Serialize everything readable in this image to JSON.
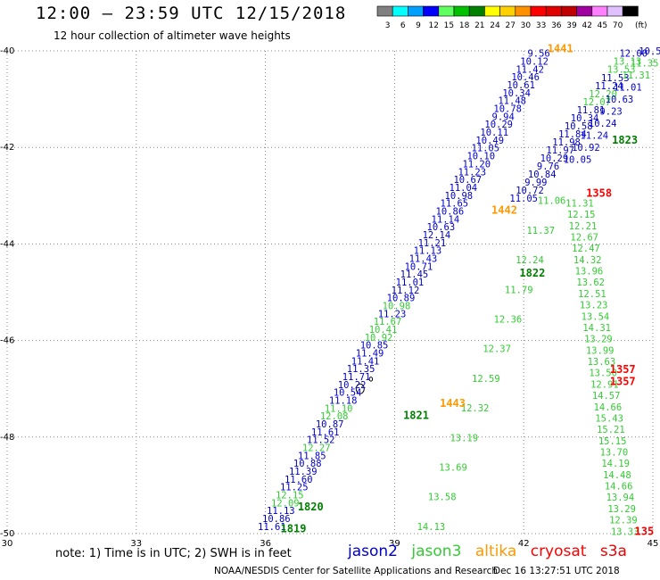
{
  "title": "12:00 – 23:59 UTC 12/15/2018",
  "subtitle": "12 hour collection of altimeter wave heights",
  "legend": {
    "unit": "(ft)",
    "bins": [
      {
        "label": "3",
        "color": "#808080"
      },
      {
        "label": "6",
        "color": "#00ffff"
      },
      {
        "label": "9",
        "color": "#00a0ff"
      },
      {
        "label": "12",
        "color": "#0000ff"
      },
      {
        "label": "15",
        "color": "#60ff60"
      },
      {
        "label": "18",
        "color": "#00c000"
      },
      {
        "label": "21",
        "color": "#008000"
      },
      {
        "label": "24",
        "color": "#ffff00"
      },
      {
        "label": "27",
        "color": "#ffd000"
      },
      {
        "label": "30",
        "color": "#ff9000"
      },
      {
        "label": "33",
        "color": "#ff0000"
      },
      {
        "label": "36",
        "color": "#e00000"
      },
      {
        "label": "39",
        "color": "#c00000"
      },
      {
        "label": "42",
        "color": "#a000a0"
      },
      {
        "label": "45",
        "color": "#ff80ff"
      },
      {
        "label": "70",
        "color": "#e0c0ff"
      },
      {
        "label": "",
        "color": "#000000"
      }
    ]
  },
  "map": {
    "lon_ticks": [
      {
        "label": "30",
        "lon": 30
      },
      {
        "label": "33",
        "lon": 33
      },
      {
        "label": "36",
        "lon": 36
      },
      {
        "label": "39",
        "lon": 39
      },
      {
        "label": "42",
        "lon": 42
      },
      {
        "label": "45",
        "lon": 45
      }
    ],
    "lat_ticks": [
      {
        "label": "-40",
        "lat": -40
      },
      {
        "label": "-42",
        "lat": -42
      },
      {
        "label": "-44",
        "lat": -44
      },
      {
        "label": "-46",
        "lat": -46
      },
      {
        "label": "-48",
        "lat": -48
      },
      {
        "label": "-50",
        "lat": -50
      }
    ],
    "lon_range": [
      30,
      45
    ],
    "lat_range": [
      -50,
      -40
    ],
    "grid": "dotted",
    "sat_colors": {
      "jason2": "#0000cc",
      "jason3": "#33cc33",
      "altika": "#ff9900",
      "cryosat": "#ff0000",
      "s3a": "#ee0000",
      "time_green": "#008000"
    },
    "tracks": [
      {
        "sat": "jason2",
        "start": [
          36.15,
          -49.85
        ],
        "end": [
          42.35,
          -40.05
        ],
        "values": [
          "11.61",
          "10.86",
          "11.13",
          "12.09",
          "12.15",
          "11.25",
          "11.60",
          "11.39",
          "10.88",
          "11.85",
          "12.27",
          "11.52",
          "11.61",
          "10.87",
          "12.08",
          "11.10",
          "11.18",
          "10.54",
          "10.22",
          "11.71",
          "11.35",
          "11.41",
          "11.49",
          "10.85",
          "10.92",
          "10.41",
          "11.67",
          "11.23",
          "10.98",
          "10.89",
          "11.12",
          "11.01",
          "11.45",
          "10.71",
          "11.43",
          "11.13",
          "11.21",
          "12.14",
          "10.63",
          "11.14",
          "10.86",
          "11.65",
          "10.98",
          "11.04",
          "10.67",
          "11.23",
          "11.20",
          "10.10",
          "11.05",
          "10.49",
          "10.11",
          "10.29",
          "9.94",
          "10.78",
          "11.48",
          "10.34",
          "10.61",
          "10.46",
          "11.42",
          "10.12",
          "9.56"
        ],
        "greens": [
          3,
          4,
          10,
          14,
          15,
          24,
          25,
          26,
          28
        ]
      },
      {
        "sat": "jason2",
        "start": [
          42.0,
          -43.05
        ],
        "end": [
          44.55,
          -40.05
        ],
        "values": [
          "11.05",
          "10.72",
          "9.99",
          "10.84",
          "9.76",
          "10.29",
          "11.97",
          "11.98",
          "11.84",
          "10.58",
          "10.34",
          "11.81",
          "12.07",
          "12.20",
          "11.24",
          "11.53",
          "13.53",
          "13.13",
          "12.00"
        ],
        "greens": [
          12,
          13,
          16,
          17
        ]
      },
      {
        "sat": "jason3",
        "start": [
          39.85,
          -49.85
        ],
        "end": [
          42.65,
          -43.1
        ],
        "values": [
          "14.13",
          "13.58",
          "13.69",
          "13.19",
          "12.32",
          "12.59",
          "12.37",
          "12.36",
          "11.79",
          "12.24",
          "11.37",
          "11.06"
        ],
        "greens": "all"
      },
      {
        "sat": "jason3",
        "start": [
          44.35,
          -49.95
        ],
        "end": [
          43.3,
          -43.15
        ],
        "values": [
          "13.33",
          "12.39",
          "13.29",
          "13.94",
          "14.66",
          "14.48",
          "14.19",
          "13.70",
          "15.15",
          "15.21",
          "15.43",
          "14.66",
          "14.57",
          "12.91",
          "13.50",
          "13.63",
          "13.99",
          "13.29",
          "14.31",
          "13.54",
          "13.23",
          "12.51",
          "13.62",
          "13.96",
          "14.32",
          "12.47",
          "12.67",
          "12.21",
          "12.15",
          "11.31"
        ],
        "greens": "all"
      },
      {
        "sat": "jason2",
        "start": [
          43.25,
          -42.25
        ],
        "end": [
          45.0,
          -40.0
        ],
        "values": [
          "10.05",
          "10.92",
          "11.24",
          "10.24",
          "9.23",
          "10.63",
          "11.01",
          "11.31",
          "11.35",
          "10.56"
        ],
        "greens": [
          7,
          8
        ]
      }
    ],
    "times": [
      {
        "text": "1819",
        "lon": 36.65,
        "lat": -49.9,
        "sat": "time_green"
      },
      {
        "text": "1820",
        "lon": 37.05,
        "lat": -49.45,
        "sat": "time_green"
      },
      {
        "text": "1821",
        "lon": 39.5,
        "lat": -47.55,
        "sat": "time_green"
      },
      {
        "text": "1443",
        "lon": 40.35,
        "lat": -47.3,
        "sat": "altika"
      },
      {
        "text": "1822",
        "lon": 42.2,
        "lat": -44.6,
        "sat": "time_green"
      },
      {
        "text": "1442",
        "lon": 41.55,
        "lat": -43.3,
        "sat": "altika"
      },
      {
        "text": "1358",
        "lon": 43.75,
        "lat": -42.95,
        "sat": "cryosat"
      },
      {
        "text": "1357",
        "lon": 44.3,
        "lat": -46.6,
        "sat": "cryosat"
      },
      {
        "text": "1357",
        "lon": 44.3,
        "lat": -46.85,
        "sat": "cryosat"
      },
      {
        "text": "1823",
        "lon": 44.35,
        "lat": -41.85,
        "sat": "time_green"
      },
      {
        "text": "1441",
        "lon": 42.85,
        "lat": -39.95,
        "sat": "altika"
      },
      {
        "text": "135",
        "lon": 44.8,
        "lat": -49.95,
        "sat": "s3a"
      }
    ]
  },
  "footer": {
    "note": "note:  1) Time is in UTC;  2) SWH is in feet",
    "sats": [
      {
        "label": "jason2",
        "color": "#0000cc"
      },
      {
        "label": "jason3",
        "color": "#33cc33"
      },
      {
        "label": "altika",
        "color": "#ff9900"
      },
      {
        "label": "cryosat",
        "color": "#ff0000"
      },
      {
        "label": "s3a",
        "color": "#ee0000"
      }
    ],
    "credit": "NOAA/NESDIS Center for Satellite Applications and Research",
    "date": "Dec 16 13:27:51 UTC 2018"
  }
}
